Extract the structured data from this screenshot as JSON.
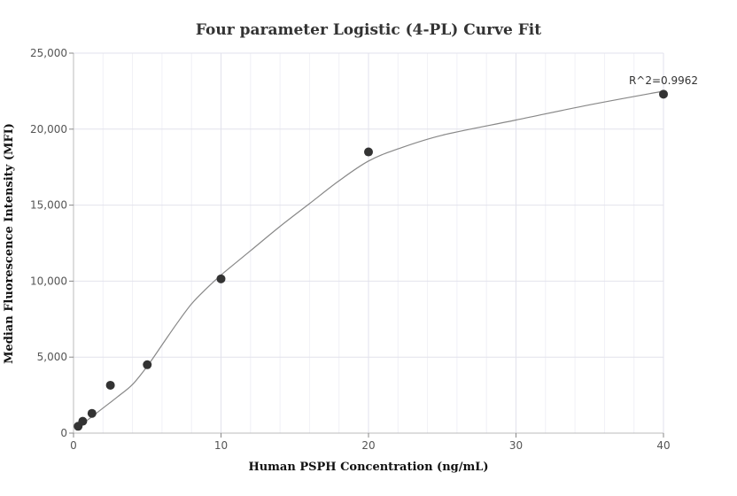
{
  "chart_data": {
    "type": "scatter",
    "title": "Four parameter Logistic (4-PL) Curve Fit",
    "xlabel": "Human PSPH Concentration (ng/mL)",
    "ylabel": "Median Fluorescence Intensity (MFI)",
    "xlim": [
      0,
      40
    ],
    "ylim": [
      0,
      25000
    ],
    "x_ticks": [
      0,
      10,
      20,
      30,
      40
    ],
    "x_tick_labels": [
      "0",
      "10",
      "20",
      "30",
      "40"
    ],
    "y_ticks": [
      0,
      5000,
      10000,
      15000,
      20000,
      25000
    ],
    "y_tick_labels": [
      "0",
      "5,000",
      "10,000",
      "15,000",
      "20,000",
      "25,000"
    ],
    "grid": true,
    "series": [
      {
        "points": [
          {
            "x": 0.3125,
            "y": 450
          },
          {
            "x": 0.625,
            "y": 780
          },
          {
            "x": 1.25,
            "y": 1300
          },
          {
            "x": 2.5,
            "y": 3150
          },
          {
            "x": 5,
            "y": 4500
          },
          {
            "x": 10,
            "y": 10150
          },
          {
            "x": 20,
            "y": 18500
          },
          {
            "x": 40,
            "y": 22300
          }
        ],
        "color": "#333333"
      }
    ],
    "fit_curve": {
      "model": "4PL",
      "color": "#888888",
      "points": [
        {
          "x": 0.3125,
          "y": 450
        },
        {
          "x": 1,
          "y": 900
        },
        {
          "x": 2,
          "y": 1650
        },
        {
          "x": 3,
          "y": 2400
        },
        {
          "x": 4,
          "y": 3200
        },
        {
          "x": 5,
          "y": 4400
        },
        {
          "x": 6,
          "y": 5800
        },
        {
          "x": 7,
          "y": 7200
        },
        {
          "x": 8,
          "y": 8500
        },
        {
          "x": 9,
          "y": 9500
        },
        {
          "x": 10,
          "y": 10400
        },
        {
          "x": 12,
          "y": 12000
        },
        {
          "x": 14,
          "y": 13600
        },
        {
          "x": 16,
          "y": 15100
        },
        {
          "x": 18,
          "y": 16600
        },
        {
          "x": 20,
          "y": 17900
        },
        {
          "x": 22,
          "y": 18700
        },
        {
          "x": 25,
          "y": 19600
        },
        {
          "x": 30,
          "y": 20600
        },
        {
          "x": 35,
          "y": 21600
        },
        {
          "x": 40,
          "y": 22500
        }
      ]
    },
    "annotation": "R^2=0.9962"
  }
}
